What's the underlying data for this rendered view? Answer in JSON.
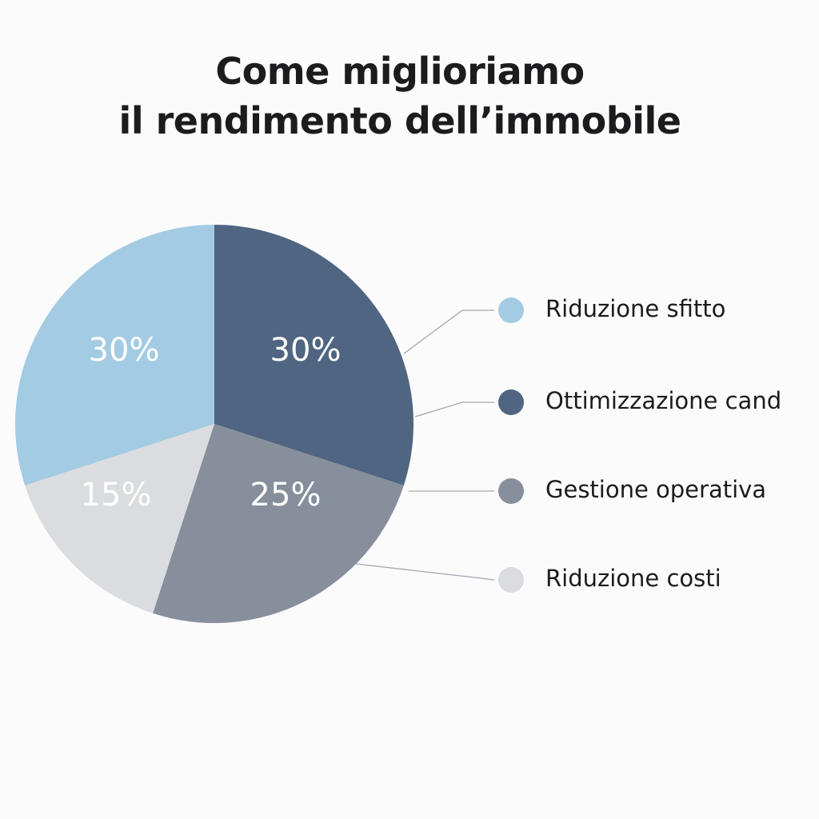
{
  "chart_data": {
    "type": "pie",
    "title": [
      "Come miglioriamo",
      "il rendimento dell’immobile"
    ],
    "slices": [
      {
        "label": "Riduzione sfitto",
        "value": 30,
        "display": "30%",
        "color": "#a3cbe3"
      },
      {
        "label": "Ottimizzazione cand",
        "value": 30,
        "display": "30%",
        "color": "#4f6582"
      },
      {
        "label": "Gestione operativa",
        "value": 25,
        "display": "25%",
        "color": "#868f9b"
      },
      {
        "label": "Riduzione costi",
        "value": 15,
        "display": "15%",
        "color": "#dbdcdf"
      }
    ],
    "legend_position": "right"
  }
}
